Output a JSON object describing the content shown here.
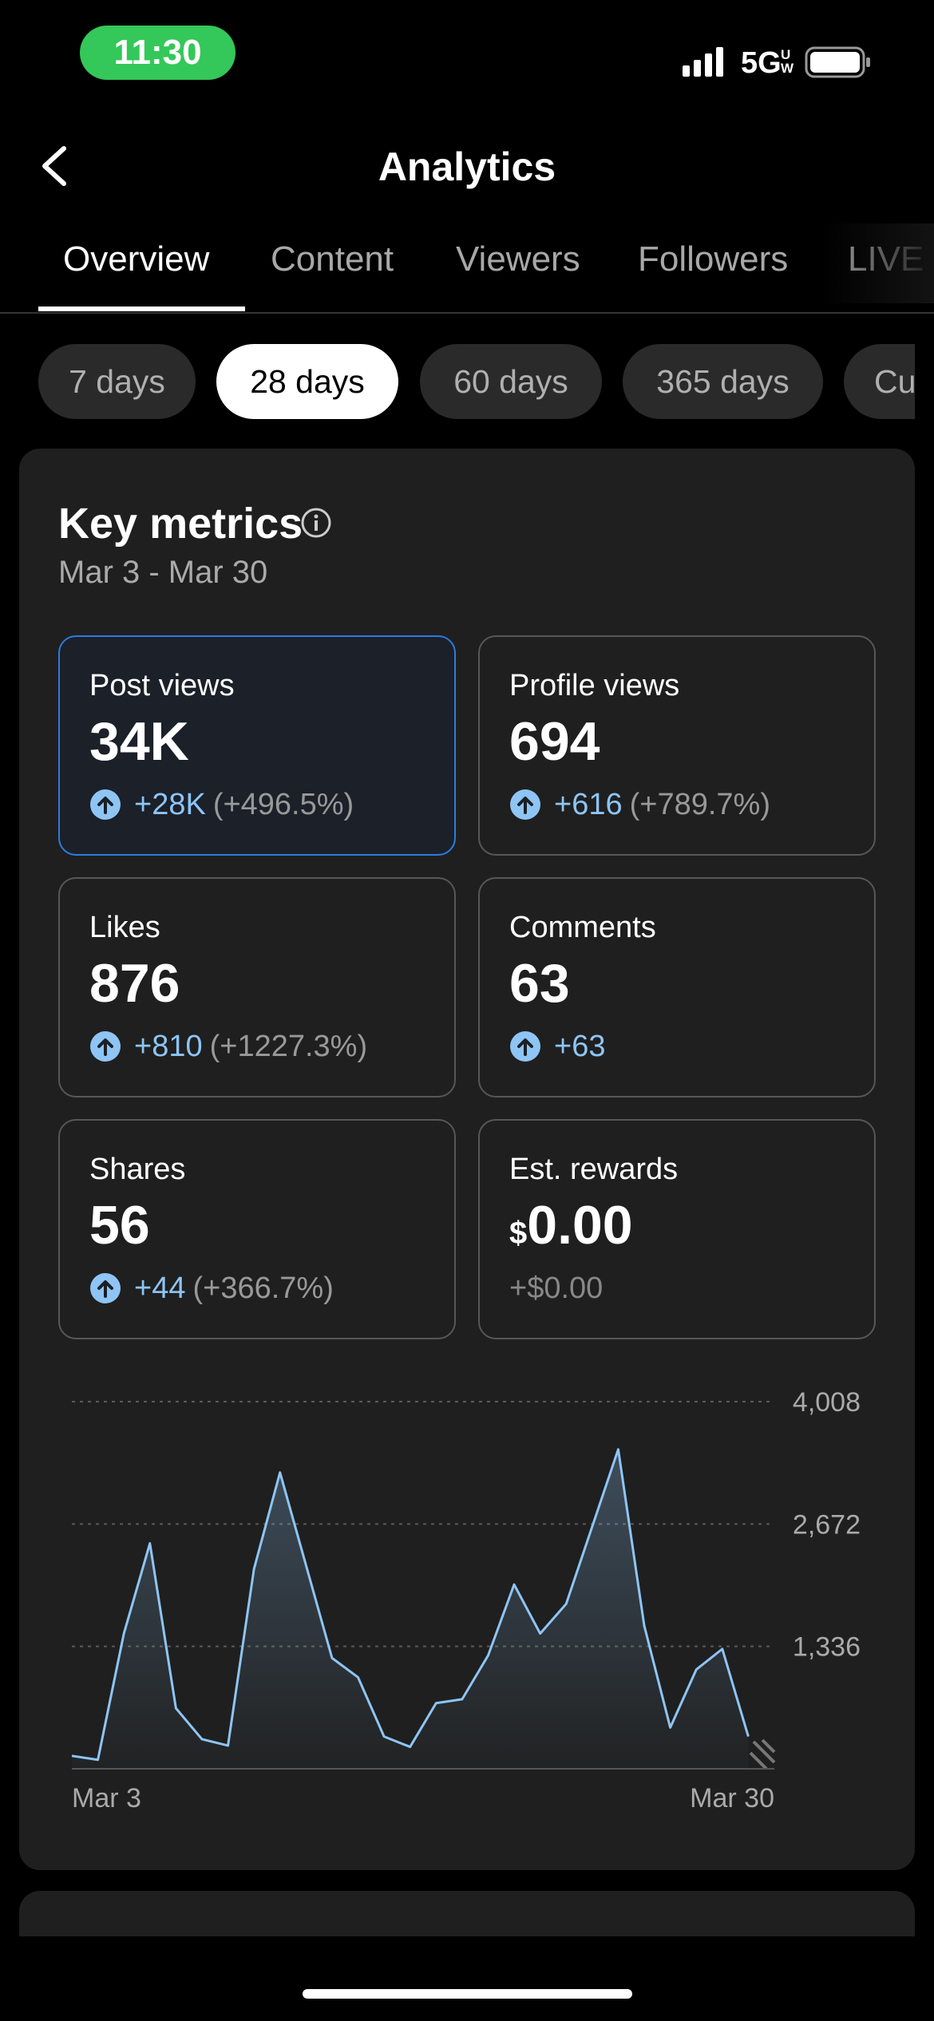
{
  "status": {
    "time": "11:30",
    "network": "5G",
    "network_sub": "UW"
  },
  "header": {
    "title": "Analytics"
  },
  "tabs": [
    "Overview",
    "Content",
    "Viewers",
    "Followers",
    "LIVE"
  ],
  "ranges": [
    "7 days",
    "28 days",
    "60 days",
    "365 days",
    "Custom"
  ],
  "key_metrics": {
    "title": "Key metrics",
    "date_range": "Mar 3 - Mar 30",
    "metrics": [
      {
        "label": "Post views",
        "value": "34K",
        "trend": "up",
        "change": "+28K",
        "percent": "(+496.5%)"
      },
      {
        "label": "Profile views",
        "value": "694",
        "trend": "up",
        "change": "+616",
        "percent": "(+789.7%)"
      },
      {
        "label": "Likes",
        "value": "876",
        "trend": "up",
        "change": "+810",
        "percent": "(+1227.3%)"
      },
      {
        "label": "Comments",
        "value": "63",
        "trend": "up",
        "change": "+63"
      },
      {
        "label": "Shares",
        "value": "56",
        "trend": "up",
        "change": "+44",
        "percent": "(+366.7%)"
      },
      {
        "label": "Est. rewards",
        "currency": "$",
        "value": "0.00",
        "change": "+$0.00"
      }
    ]
  },
  "chart_data": {
    "type": "line",
    "color": "#8ec5f5",
    "categories": [
      "Mar 3",
      null,
      null,
      null,
      null,
      null,
      null,
      null,
      null,
      null,
      null,
      null,
      null,
      null,
      null,
      null,
      null,
      null,
      null,
      null,
      null,
      null,
      null,
      null,
      null,
      null,
      null,
      "Mar 30"
    ],
    "values": [
      141,
      98,
      1476,
      2461,
      661,
      323,
      253,
      2180,
      3234,
      2222,
      1209,
      998,
      352,
      239,
      717,
      759,
      1237,
      2011,
      1476,
      1800,
      2643,
      3487,
      1561,
      450,
      1083,
      1308,
      352,
      null
    ],
    "ylim": [
      0,
      4008
    ],
    "yticks": [
      {
        "value": 1336,
        "label": "1,336"
      },
      {
        "value": 2672,
        "label": "2,672"
      },
      {
        "value": 4008,
        "label": "4,008"
      }
    ],
    "grid": true
  }
}
